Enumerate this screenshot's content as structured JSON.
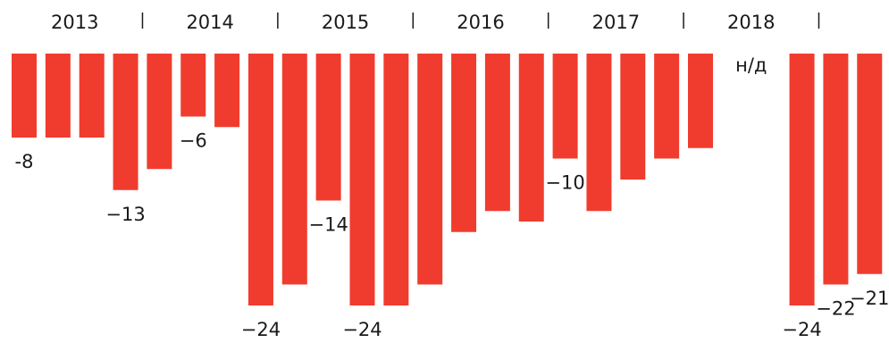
{
  "chart_data": {
    "type": "bar",
    "year_labels": [
      "2013",
      "2014",
      "2015",
      "2016",
      "2017",
      "2018"
    ],
    "categories": [
      null,
      null,
      null,
      null,
      null,
      null,
      null,
      null,
      null,
      null,
      null,
      null,
      null,
      null,
      null,
      null,
      null,
      null,
      null,
      null,
      null,
      null,
      null,
      null,
      null,
      null
    ],
    "values": [
      -8,
      -8,
      -8,
      -13,
      -11,
      -6,
      -7,
      -24,
      -22,
      -14,
      -24,
      -24,
      -22,
      -17,
      -15,
      -16,
      -10,
      -15,
      -12,
      -10,
      -9,
      null,
      null,
      -24,
      -22,
      -21
    ],
    "value_labels": [
      "-8",
      null,
      null,
      "−13",
      null,
      "−6",
      null,
      "−24",
      null,
      "−14",
      "−24",
      null,
      null,
      null,
      null,
      null,
      "−10",
      null,
      null,
      null,
      null,
      null,
      null,
      "−24",
      "−22",
      "−21"
    ],
    "missing_label": "н/д",
    "color": "#f03c2e",
    "ylim": [
      -24,
      0
    ]
  }
}
